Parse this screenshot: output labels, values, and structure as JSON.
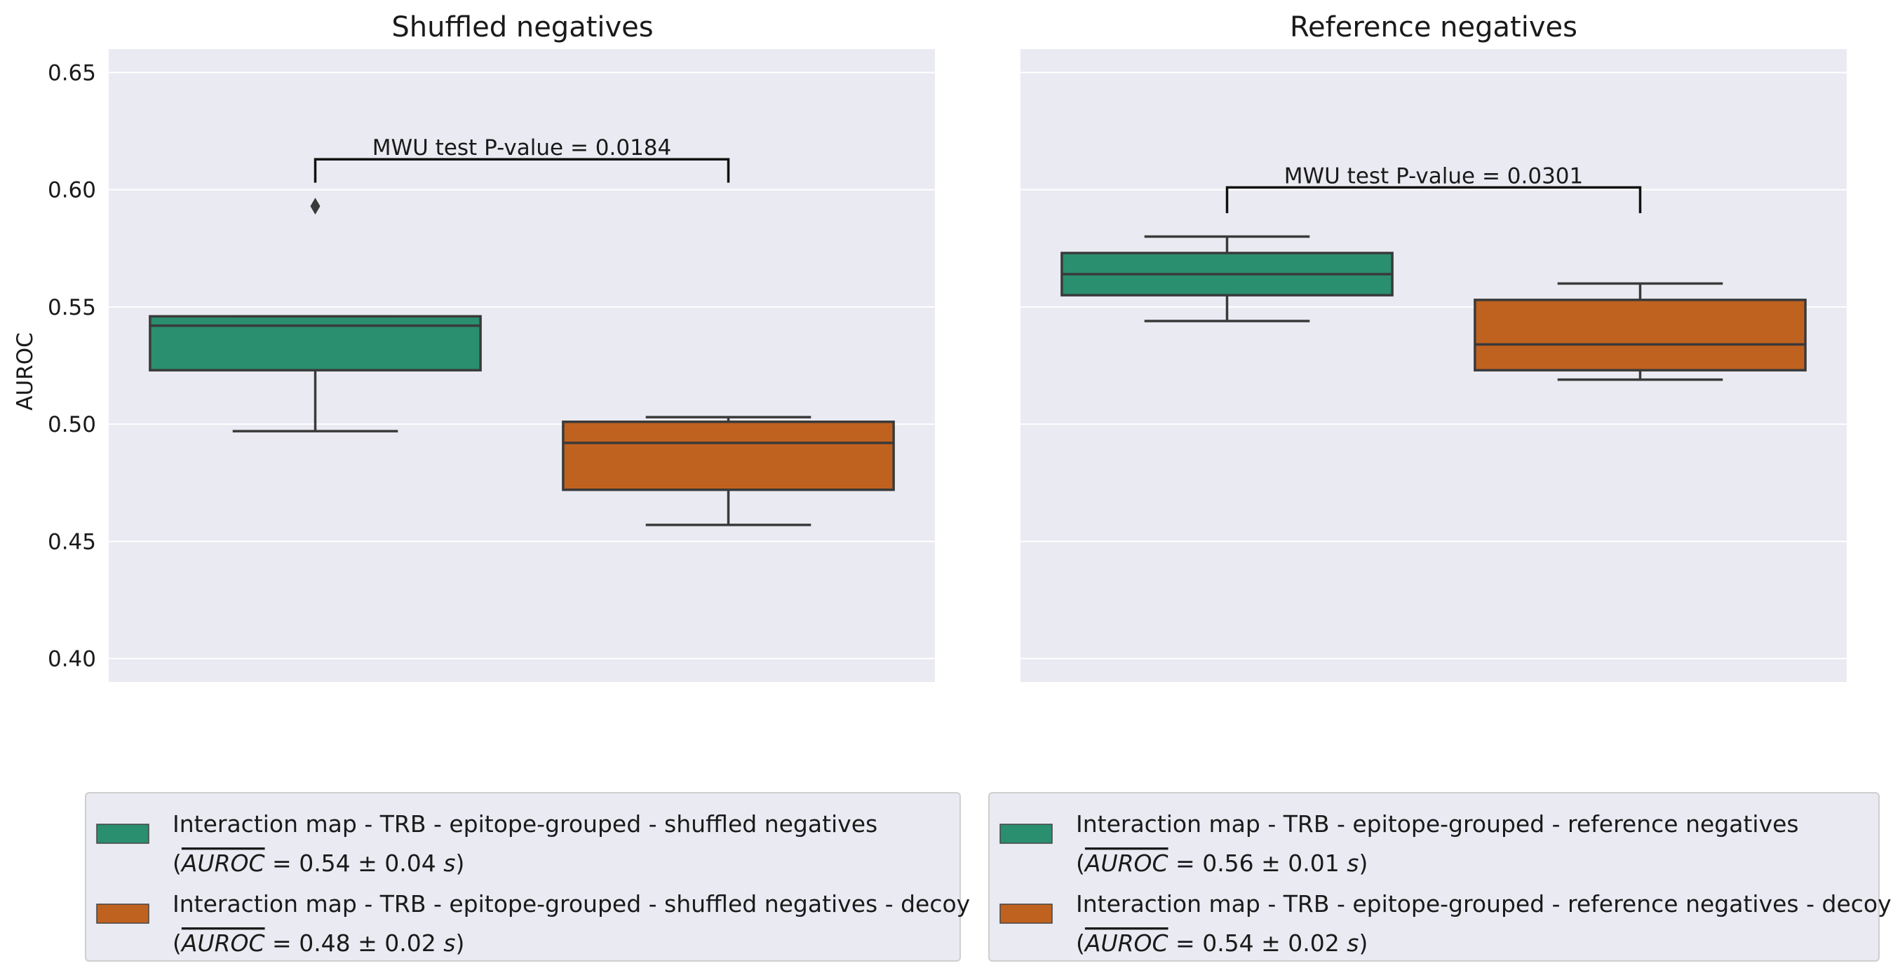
{
  "colors": {
    "panel_bg": "#EAEAF2",
    "grid": "#FFFFFF",
    "box_edge": "#3A3A3A",
    "green": "#2A8F6F",
    "orange": "#C0621F",
    "legend_bg": "#EAEAF2",
    "legend_border": "#CFCFCF"
  },
  "chart_data": [
    {
      "type": "box",
      "title": "Shuffled negatives",
      "ylabel": "AUROC",
      "ylim": [
        0.39,
        0.66
      ],
      "yticks": [
        0.4,
        0.45,
        0.5,
        0.55,
        0.6,
        0.65
      ],
      "ytick_labels": [
        "0.40",
        "0.45",
        "0.50",
        "0.55",
        "0.60",
        "0.65"
      ],
      "grid": true,
      "boxes": [
        {
          "color": "green",
          "whisker_low": 0.497,
          "q1": 0.523,
          "median": 0.542,
          "q3": 0.546,
          "whisker_high": 0.546,
          "outliers": [
            0.593
          ]
        },
        {
          "color": "orange",
          "whisker_low": 0.457,
          "q1": 0.472,
          "median": 0.492,
          "q3": 0.501,
          "whisker_high": 0.503,
          "outliers": []
        }
      ],
      "annotation": {
        "text": "MWU test P-value = 0.0184",
        "level": 0.613,
        "drop_to": [
          0.603,
          0.603
        ]
      },
      "legend": {
        "placement": "below",
        "entries": [
          {
            "color": "green",
            "line1": "Interaction map - TRB - epitope-grouped - shuffled negatives",
            "bar": "AUROC",
            "rest": " = 0.54 ± 0.04 ",
            "sym": "s"
          },
          {
            "color": "orange",
            "line1": "Interaction map - TRB - epitope-grouped - shuffled negatives - decoy",
            "bar": "AUROC",
            "rest": " = 0.48 ± 0.02 ",
            "sym": "s"
          }
        ]
      }
    },
    {
      "type": "box",
      "title": "Reference negatives",
      "ylabel": "",
      "ylim": [
        0.39,
        0.66
      ],
      "yticks": [
        0.4,
        0.45,
        0.5,
        0.55,
        0.6,
        0.65
      ],
      "ytick_labels": [],
      "grid": true,
      "boxes": [
        {
          "color": "green",
          "whisker_low": 0.544,
          "q1": 0.555,
          "median": 0.564,
          "q3": 0.573,
          "whisker_high": 0.58,
          "outliers": []
        },
        {
          "color": "orange",
          "whisker_low": 0.519,
          "q1": 0.523,
          "median": 0.534,
          "q3": 0.553,
          "whisker_high": 0.56,
          "outliers": []
        }
      ],
      "annotation": {
        "text": "MWU test P-value = 0.0301",
        "level": 0.601,
        "drop_to": [
          0.59,
          0.59
        ]
      },
      "legend": {
        "placement": "below",
        "entries": [
          {
            "color": "green",
            "line1": "Interaction map - TRB - epitope-grouped - reference negatives",
            "bar": "AUROC",
            "rest": " = 0.56 ± 0.01 ",
            "sym": "s"
          },
          {
            "color": "orange",
            "line1": "Interaction map - TRB - epitope-grouped - reference negatives - decoy",
            "bar": "AUROC",
            "rest": " = 0.54 ± 0.02 ",
            "sym": "s"
          }
        ]
      }
    }
  ]
}
